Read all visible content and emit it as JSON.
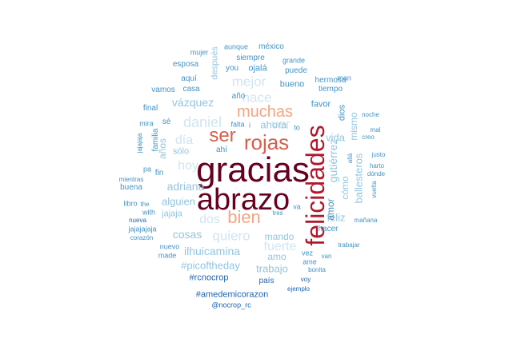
{
  "palette": {
    "c1": "#67001f",
    "c2": "#b2182b",
    "c3": "#d6604d",
    "c4": "#f4a582",
    "c5": "#d1e5f0",
    "c6": "#92c5de",
    "c7": "#4393c3",
    "c8": "#2166ac"
  },
  "words": [
    {
      "text": "gracias",
      "color": "c1"
    },
    {
      "text": "abrazo",
      "color": "c1"
    },
    {
      "text": "felicidades",
      "color": "c2"
    },
    {
      "text": "rojas",
      "color": "c3"
    },
    {
      "text": "ser",
      "color": "c3"
    },
    {
      "text": "bien",
      "color": "c4"
    },
    {
      "text": "muchas",
      "color": "c4"
    },
    {
      "text": "mejor",
      "color": "c5"
    },
    {
      "text": "hace",
      "color": "c5"
    },
    {
      "text": "ver",
      "color": "c5"
    },
    {
      "text": "daniel",
      "color": "c5"
    },
    {
      "text": "día",
      "color": "c5"
    },
    {
      "text": "hoy",
      "color": "c5"
    },
    {
      "text": "dos",
      "color": "c5"
    },
    {
      "text": "quiero",
      "color": "c5"
    },
    {
      "text": "fuerte",
      "color": "c5"
    },
    {
      "text": "vázquez",
      "color": "c6"
    },
    {
      "text": "gutiérrez",
      "color": "c6"
    },
    {
      "text": "adriana",
      "color": "c6"
    },
    {
      "text": "cosas",
      "color": "c6"
    },
    {
      "text": "ilhuicamina",
      "color": "c6"
    },
    {
      "text": "#picoftheday",
      "color": "c6"
    },
    {
      "text": "trabajo",
      "color": "c6"
    },
    {
      "text": "alguien",
      "color": "c6"
    },
    {
      "text": "jajaja",
      "color": "c6"
    },
    {
      "text": "ballesteros",
      "color": "c6"
    },
    {
      "text": "cómo",
      "color": "c6"
    },
    {
      "text": "mismo",
      "color": "c6"
    },
    {
      "text": "ahora",
      "color": "c6"
    },
    {
      "text": "vida",
      "color": "c6"
    },
    {
      "text": "feliz",
      "color": "c6"
    },
    {
      "text": "amo",
      "color": "c6"
    },
    {
      "text": "mando",
      "color": "c6"
    },
    {
      "text": "años",
      "color": "c6"
    },
    {
      "text": "sólo",
      "color": "c6"
    },
    {
      "text": "después",
      "color": "c6"
    },
    {
      "text": "aunque",
      "color": "c7"
    },
    {
      "text": "méxico",
      "color": "c7"
    },
    {
      "text": "mujer",
      "color": "c7"
    },
    {
      "text": "siempre",
      "color": "c7"
    },
    {
      "text": "grande",
      "color": "c7"
    },
    {
      "text": "esposa",
      "color": "c7"
    },
    {
      "text": "you",
      "color": "c7"
    },
    {
      "text": "ojalá",
      "color": "c7"
    },
    {
      "text": "puede",
      "color": "c7"
    },
    {
      "text": "man",
      "color": "c7"
    },
    {
      "text": "aquí",
      "color": "c7"
    },
    {
      "text": "hermosa",
      "color": "c7"
    },
    {
      "text": "vamos",
      "color": "c7"
    },
    {
      "text": "casa",
      "color": "c7"
    },
    {
      "text": "bueno",
      "color": "c7"
    },
    {
      "text": "tiempo",
      "color": "c7"
    },
    {
      "text": "año",
      "color": "c7"
    },
    {
      "text": "favor",
      "color": "c7"
    },
    {
      "text": "dios",
      "color": "c7"
    },
    {
      "text": "final",
      "color": "c7"
    },
    {
      "text": "noche",
      "color": "c7"
    },
    {
      "text": "mira",
      "color": "c7"
    },
    {
      "text": "sé",
      "color": "c7"
    },
    {
      "text": "falta",
      "color": "c7"
    },
    {
      "text": "to",
      "color": "c7"
    },
    {
      "text": "mal",
      "color": "c7"
    },
    {
      "text": "familia",
      "color": "c7"
    },
    {
      "text": "creo",
      "color": "c7"
    },
    {
      "text": "jajajaja",
      "color": "c7"
    },
    {
      "text": "ahí",
      "color": "c7"
    },
    {
      "text": "justo",
      "color": "c7"
    },
    {
      "text": "allá",
      "color": "c7"
    },
    {
      "text": "harto",
      "color": "c7"
    },
    {
      "text": "pa",
      "color": "c7"
    },
    {
      "text": "fin",
      "color": "c7"
    },
    {
      "text": "dónde",
      "color": "c7"
    },
    {
      "text": "mientras",
      "color": "c7"
    },
    {
      "text": "buena",
      "color": "c7"
    },
    {
      "text": "vuelta",
      "color": "c7"
    },
    {
      "text": "libro",
      "color": "c7"
    },
    {
      "text": "the",
      "color": "c7"
    },
    {
      "text": "va",
      "color": "c7"
    },
    {
      "text": "with",
      "color": "c7"
    },
    {
      "text": "tres",
      "color": "c7"
    },
    {
      "text": "mañana",
      "color": "c7"
    },
    {
      "text": "jajajajaja",
      "color": "c7"
    },
    {
      "text": "hacer",
      "color": "c7"
    },
    {
      "text": "corazón",
      "color": "c7"
    },
    {
      "text": "nuevo",
      "color": "c7"
    },
    {
      "text": "trabajar",
      "color": "c7"
    },
    {
      "text": "made",
      "color": "c7"
    },
    {
      "text": "vez",
      "color": "c7"
    },
    {
      "text": "van",
      "color": "c7"
    },
    {
      "text": "ame",
      "color": "c7"
    },
    {
      "text": "bonita",
      "color": "c7"
    },
    {
      "text": "#rcnocrop",
      "color": "c8"
    },
    {
      "text": "país",
      "color": "c8"
    },
    {
      "text": "voy",
      "color": "c8"
    },
    {
      "text": "ejemplo",
      "color": "c8"
    },
    {
      "text": "#amedemicorazon",
      "color": "c8"
    },
    {
      "text": "@nocrop_rc",
      "color": "c8"
    },
    {
      "text": "nueva",
      "color": "c8"
    },
    {
      "text": "i",
      "color": "c7"
    },
    {
      "text": "amor",
      "color": "c7"
    }
  ]
}
